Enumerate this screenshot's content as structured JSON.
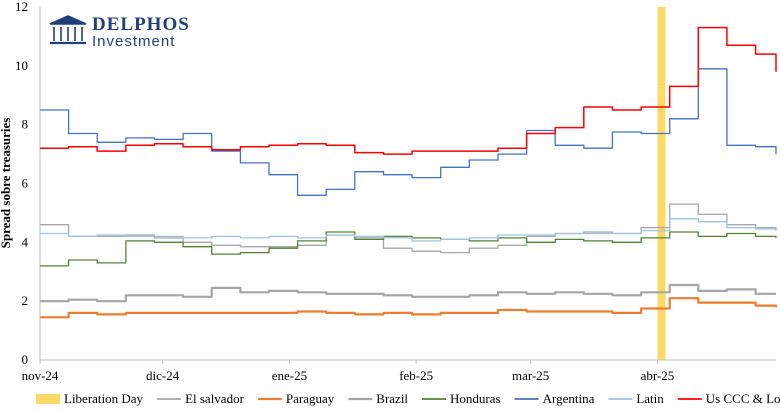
{
  "logo": {
    "name": "DELPHOS",
    "subtitle": "Investment",
    "color": "#1f3f7a"
  },
  "chart_data": {
    "type": "line",
    "title": "",
    "xlabel": "",
    "ylabel": "Spread sobre treasuries",
    "ylim": [
      0,
      12
    ],
    "yticks": [
      0,
      2,
      4,
      6,
      8,
      10,
      12
    ],
    "xlim": [
      "2024-11-01",
      "2025-04-30"
    ],
    "xticks": [
      {
        "label": "nov-24",
        "date": "2024-11-01"
      },
      {
        "label": "dic-24",
        "date": "2024-12-01"
      },
      {
        "label": "ene-25",
        "date": "2025-01-01"
      },
      {
        "label": "feb-25",
        "date": "2025-02-01"
      },
      {
        "label": "mar-25",
        "date": "2025-03-01"
      },
      {
        "label": "abr-25",
        "date": "2025-04-01"
      }
    ],
    "grid": "none",
    "legend_position": "bottom",
    "event": {
      "name": "Liberation Day",
      "date": "2025-04-02",
      "color": "#ffd966"
    },
    "x": [
      "2024-11-01",
      "2024-11-08",
      "2024-11-15",
      "2024-11-22",
      "2024-11-29",
      "2024-12-06",
      "2024-12-13",
      "2024-12-20",
      "2024-12-27",
      "2025-01-03",
      "2025-01-10",
      "2025-01-17",
      "2025-01-24",
      "2025-01-31",
      "2025-02-07",
      "2025-02-14",
      "2025-02-21",
      "2025-02-28",
      "2025-03-07",
      "2025-03-14",
      "2025-03-21",
      "2025-03-28",
      "2025-04-04",
      "2025-04-11",
      "2025-04-18",
      "2025-04-25",
      "2025-04-30"
    ],
    "series": [
      {
        "name": "El salvador",
        "color": "#a6a6a6",
        "width": 1.3,
        "values": [
          4.6,
          4.2,
          4.2,
          4.25,
          4.15,
          4.0,
          3.9,
          3.85,
          3.85,
          3.9,
          4.25,
          4.15,
          3.8,
          3.7,
          3.65,
          3.8,
          3.9,
          4.2,
          4.3,
          4.35,
          4.3,
          4.5,
          5.3,
          4.95,
          4.6,
          4.5,
          4.4
        ]
      },
      {
        "name": "Paraguay",
        "color": "#ed7d31",
        "width": 2.2,
        "values": [
          1.45,
          1.6,
          1.55,
          1.6,
          1.6,
          1.6,
          1.6,
          1.6,
          1.6,
          1.65,
          1.6,
          1.55,
          1.6,
          1.55,
          1.6,
          1.6,
          1.7,
          1.65,
          1.65,
          1.65,
          1.6,
          1.75,
          2.1,
          1.95,
          1.95,
          1.85,
          1.8
        ]
      },
      {
        "name": "Brazil",
        "color": "#a5a5a5",
        "width": 2.2,
        "values": [
          2.0,
          2.05,
          2.0,
          2.2,
          2.2,
          2.15,
          2.45,
          2.3,
          2.35,
          2.3,
          2.25,
          2.25,
          2.2,
          2.15,
          2.15,
          2.2,
          2.3,
          2.25,
          2.3,
          2.25,
          2.2,
          2.3,
          2.55,
          2.35,
          2.4,
          2.25,
          2.25
        ]
      },
      {
        "name": "Honduras",
        "color": "#548235",
        "width": 1.3,
        "values": [
          3.2,
          3.4,
          3.3,
          4.05,
          4.0,
          3.85,
          3.6,
          3.65,
          3.8,
          4.05,
          4.35,
          4.1,
          4.2,
          4.15,
          4.1,
          4.05,
          4.15,
          4.0,
          4.1,
          4.05,
          4.0,
          4.15,
          4.35,
          4.2,
          4.3,
          4.2,
          4.15
        ]
      },
      {
        "name": "Argentina",
        "color": "#4472c4",
        "width": 1.3,
        "values": [
          8.5,
          7.7,
          7.4,
          7.55,
          7.5,
          7.7,
          7.1,
          6.7,
          6.3,
          5.6,
          5.8,
          6.4,
          6.3,
          6.2,
          6.55,
          6.8,
          7.0,
          7.8,
          7.3,
          7.2,
          7.75,
          7.7,
          8.2,
          9.9,
          7.3,
          7.25,
          7.0
        ]
      },
      {
        "name": "Latin",
        "color": "#9dc3e6",
        "width": 1.3,
        "values": [
          4.3,
          4.2,
          4.25,
          4.2,
          4.2,
          4.15,
          4.2,
          4.15,
          4.2,
          4.15,
          4.25,
          4.2,
          4.15,
          4.05,
          4.1,
          4.15,
          4.25,
          4.25,
          4.3,
          4.3,
          4.3,
          4.4,
          4.8,
          4.7,
          4.5,
          4.45,
          4.45
        ]
      },
      {
        "name": "Us CCC & Lower",
        "color": "#ff0000",
        "width": 1.5,
        "values": [
          7.2,
          7.25,
          7.1,
          7.3,
          7.35,
          7.25,
          7.15,
          7.25,
          7.3,
          7.35,
          7.3,
          7.05,
          7.0,
          7.1,
          7.1,
          7.1,
          7.2,
          7.7,
          7.9,
          8.6,
          8.5,
          8.6,
          9.3,
          11.3,
          10.7,
          10.4,
          9.8
        ]
      }
    ]
  }
}
